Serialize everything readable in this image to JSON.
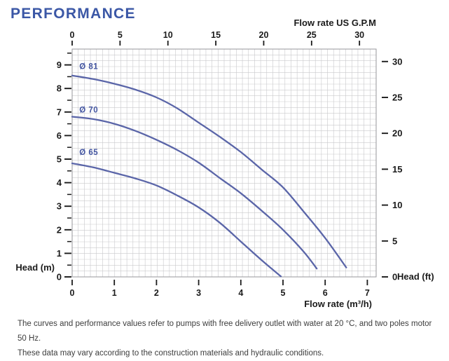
{
  "title": "PERFORMANCE",
  "footer": {
    "line1": "The curves and performance values refer to pumps with free delivery outlet with water at 20 °C, and two poles motor 50 Hz.",
    "line2": "These data may vary according to the construction materials and hydraulic conditions."
  },
  "chart_data": {
    "type": "line",
    "title": "PERFORMANCE",
    "x_axis_bottom": {
      "label": "Flow rate  (m³/h)",
      "unit": "m3/h",
      "ticks": [
        0,
        1,
        2,
        3,
        4,
        5,
        6,
        7
      ],
      "range": [
        0,
        7.2
      ]
    },
    "x_axis_top": {
      "label": "Flow rate US  G.P.M",
      "unit": "US GPM",
      "ticks": [
        0,
        5,
        10,
        15,
        20,
        25,
        30
      ],
      "gpm_per_m3h": 4.4029
    },
    "y_axis_left": {
      "label": "Head (m)",
      "unit": "m",
      "ticks": [
        0,
        1,
        2,
        3,
        4,
        5,
        6,
        7,
        8,
        9
      ],
      "minor_step": 0.5,
      "range": [
        0,
        9.67
      ]
    },
    "y_axis_right": {
      "label": "Head (ft)",
      "unit": "ft",
      "ticks": [
        0,
        5,
        10,
        15,
        20,
        25,
        30
      ],
      "ft_per_m": 3.2808
    },
    "grid": {
      "on": true,
      "cols": 50,
      "rows": 39
    },
    "legend_position": "labels-on-curves",
    "series": [
      {
        "name": "Ø 81",
        "label_pos": [
          0.17,
          8.82
        ],
        "points": [
          [
            0,
            8.55
          ],
          [
            0.5,
            8.4
          ],
          [
            1,
            8.2
          ],
          [
            1.5,
            7.95
          ],
          [
            2,
            7.62
          ],
          [
            2.5,
            7.15
          ],
          [
            3,
            6.55
          ],
          [
            3.5,
            5.95
          ],
          [
            4,
            5.3
          ],
          [
            4.5,
            4.55
          ],
          [
            5,
            3.8
          ],
          [
            5.5,
            2.75
          ],
          [
            6,
            1.65
          ],
          [
            6.5,
            0.4
          ]
        ]
      },
      {
        "name": "Ø 70",
        "label_pos": [
          0.17,
          6.98
        ],
        "points": [
          [
            0,
            6.8
          ],
          [
            0.5,
            6.7
          ],
          [
            1,
            6.5
          ],
          [
            1.5,
            6.2
          ],
          [
            2,
            5.82
          ],
          [
            2.5,
            5.38
          ],
          [
            3,
            4.85
          ],
          [
            3.5,
            4.2
          ],
          [
            4,
            3.55
          ],
          [
            4.5,
            2.8
          ],
          [
            5,
            2.0
          ],
          [
            5.5,
            1.05
          ],
          [
            5.8,
            0.35
          ]
        ]
      },
      {
        "name": "Ø 65",
        "label_pos": [
          0.17,
          5.18
        ],
        "points": [
          [
            0,
            4.82
          ],
          [
            0.5,
            4.65
          ],
          [
            1,
            4.42
          ],
          [
            1.5,
            4.18
          ],
          [
            2,
            3.88
          ],
          [
            2.5,
            3.45
          ],
          [
            3,
            2.95
          ],
          [
            3.5,
            2.3
          ],
          [
            4,
            1.5
          ],
          [
            4.5,
            0.7
          ],
          [
            4.95,
            0.02
          ]
        ]
      }
    ],
    "colors": {
      "curve": "#5a65a8",
      "curve_label": "#4355a0",
      "grid": "#c9c9cc",
      "frame": "#97979b",
      "tick": "#1b1b1b",
      "title": "#3b57a6",
      "footer_text": "#3d3d3d"
    }
  }
}
